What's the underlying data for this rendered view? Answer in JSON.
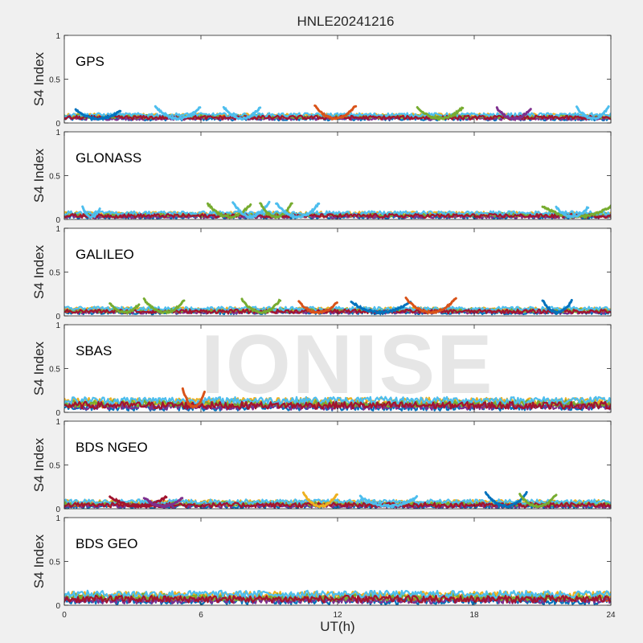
{
  "figure": {
    "title": "HNLE20241216",
    "xlabel": "UT(h)",
    "watermark": "IONISE"
  },
  "chart_data": {
    "type": "scatter",
    "x_ticks": [
      0,
      6,
      12,
      18,
      24
    ],
    "xlim": [
      0,
      24
    ],
    "grid": false,
    "panels": [
      {
        "label": "GPS",
        "ylabel": "S4 Index",
        "ylim": [
          0,
          1
        ],
        "y_ticks": [
          0,
          0.5,
          1
        ],
        "baseline": [
          0.05,
          0.1
        ],
        "arcs": [
          {
            "start": 0.5,
            "end": 2.5,
            "peak": 0.15,
            "color": "#0072BD"
          },
          {
            "start": 4.0,
            "end": 6.0,
            "peak": 0.19,
            "color": "#4DBEEE"
          },
          {
            "start": 7.0,
            "end": 8.6,
            "peak": 0.18,
            "color": "#4DBEEE"
          },
          {
            "start": 11.0,
            "end": 12.8,
            "peak": 0.2,
            "color": "#D95319"
          },
          {
            "start": 15.5,
            "end": 17.5,
            "peak": 0.18,
            "color": "#77AC30"
          },
          {
            "start": 19.0,
            "end": 20.5,
            "peak": 0.17,
            "color": "#7E2F8E"
          },
          {
            "start": 22.5,
            "end": 23.9,
            "peak": 0.18,
            "color": "#4DBEEE"
          }
        ]
      },
      {
        "label": "GLONASS",
        "ylabel": "S4 Index",
        "ylim": [
          0,
          1
        ],
        "y_ticks": [
          0,
          0.5,
          1
        ],
        "baseline": [
          0.03,
          0.08
        ],
        "arcs": [
          {
            "start": 0.8,
            "end": 1.6,
            "peak": 0.14,
            "color": "#4DBEEE"
          },
          {
            "start": 6.3,
            "end": 8.2,
            "peak": 0.18,
            "color": "#77AC30"
          },
          {
            "start": 7.4,
            "end": 9.0,
            "peak": 0.2,
            "color": "#4DBEEE"
          },
          {
            "start": 8.6,
            "end": 10.0,
            "peak": 0.19,
            "color": "#77AC30"
          },
          {
            "start": 9.3,
            "end": 11.2,
            "peak": 0.19,
            "color": "#4DBEEE"
          },
          {
            "start": 21.0,
            "end": 24.0,
            "peak": 0.15,
            "color": "#77AC30"
          },
          {
            "start": 21.6,
            "end": 23.0,
            "peak": 0.14,
            "color": "#4DBEEE"
          }
        ]
      },
      {
        "label": "GALILEO",
        "ylabel": "S4 Index",
        "ylim": [
          0,
          1
        ],
        "y_ticks": [
          0,
          0.5,
          1
        ],
        "baseline": [
          0.04,
          0.09
        ],
        "arcs": [
          {
            "start": 2.0,
            "end": 3.3,
            "peak": 0.14,
            "color": "#77AC30"
          },
          {
            "start": 3.5,
            "end": 5.3,
            "peak": 0.19,
            "color": "#77AC30"
          },
          {
            "start": 7.8,
            "end": 9.5,
            "peak": 0.19,
            "color": "#77AC30"
          },
          {
            "start": 10.3,
            "end": 12.0,
            "peak": 0.16,
            "color": "#D95319"
          },
          {
            "start": 12.6,
            "end": 15.2,
            "peak": 0.16,
            "color": "#0072BD"
          },
          {
            "start": 15.0,
            "end": 17.2,
            "peak": 0.2,
            "color": "#D95319"
          },
          {
            "start": 21.0,
            "end": 22.3,
            "peak": 0.18,
            "color": "#0072BD"
          }
        ]
      },
      {
        "label": "SBAS",
        "ylabel": "S4 Index",
        "ylim": [
          0,
          1
        ],
        "y_ticks": [
          0,
          0.5,
          1
        ],
        "baseline": [
          0.06,
          0.15
        ],
        "arcs": [
          {
            "start": 5.2,
            "end": 6.2,
            "peak": 0.27,
            "color": "#D95319"
          }
        ]
      },
      {
        "label": "BDS NGEO",
        "ylabel": "S4 Index",
        "ylim": [
          0,
          1
        ],
        "y_ticks": [
          0,
          0.5,
          1
        ],
        "baseline": [
          0.03,
          0.09
        ],
        "arcs": [
          {
            "start": 2.0,
            "end": 4.5,
            "peak": 0.14,
            "color": "#A2142F"
          },
          {
            "start": 3.5,
            "end": 5.2,
            "peak": 0.13,
            "color": "#7E2F8E"
          },
          {
            "start": 10.5,
            "end": 12.0,
            "peak": 0.18,
            "color": "#EDB120"
          },
          {
            "start": 13.0,
            "end": 15.5,
            "peak": 0.14,
            "color": "#4DBEEE"
          },
          {
            "start": 18.5,
            "end": 20.3,
            "peak": 0.18,
            "color": "#0072BD"
          },
          {
            "start": 20.0,
            "end": 21.6,
            "peak": 0.16,
            "color": "#77AC30"
          }
        ]
      },
      {
        "label": "BDS GEO",
        "ylabel": "S4 Index",
        "ylim": [
          0,
          1
        ],
        "y_ticks": [
          0,
          0.5,
          1
        ],
        "baseline": [
          0.05,
          0.14
        ],
        "arcs": []
      }
    ],
    "colors": [
      "#0072BD",
      "#D95319",
      "#EDB120",
      "#7E2F8E",
      "#77AC30",
      "#4DBEEE",
      "#A2142F"
    ]
  }
}
